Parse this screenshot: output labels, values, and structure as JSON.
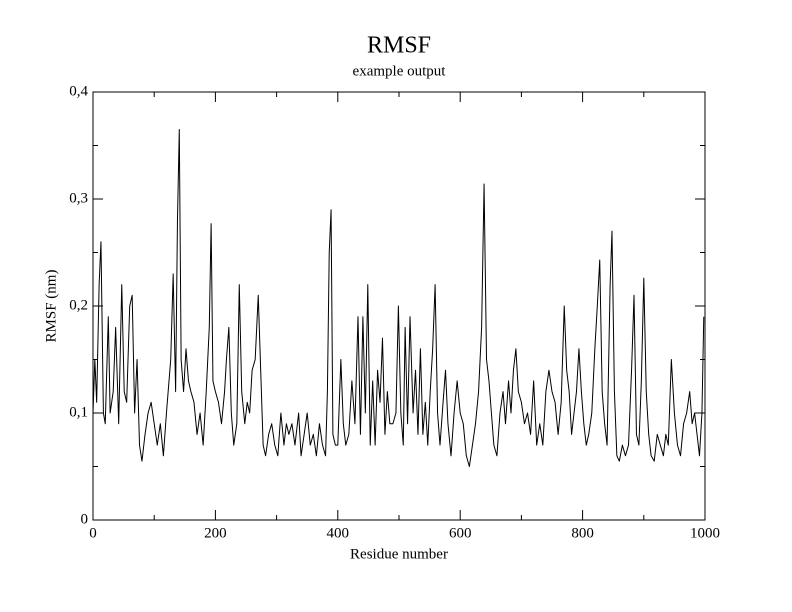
{
  "chart_data": {
    "type": "line",
    "title": "RMSF",
    "subtitle": "example output",
    "x_label": "Residue number",
    "y_label": "RMSF (nm)",
    "xlim": [
      0,
      1000
    ],
    "xticks": [
      0,
      200,
      400,
      600,
      800,
      1000
    ],
    "ylim": [
      0,
      0.4
    ],
    "yticks": [
      0,
      {
        "value": 0.1,
        "label": "0,1"
      },
      {
        "value": 0.2,
        "label": "0,2"
      },
      {
        "value": 0.3,
        "label": "0,3"
      },
      {
        "value": 0.4,
        "label": "0,4"
      }
    ],
    "color": "#000000",
    "x": [
      0,
      3,
      6,
      10,
      13,
      17,
      20,
      25,
      28,
      33,
      37,
      42,
      47,
      51,
      55,
      60,
      64,
      68,
      72,
      76,
      80,
      85,
      90,
      95,
      100,
      105,
      110,
      115,
      120,
      127,
      131,
      135,
      138,
      141,
      144,
      148,
      152,
      156,
      160,
      165,
      170,
      175,
      180,
      185,
      190,
      193,
      196,
      200,
      205,
      210,
      215,
      218,
      222,
      226,
      230,
      235,
      239,
      243,
      248,
      252,
      256,
      260,
      265,
      270,
      274,
      278,
      282,
      287,
      292,
      297,
      302,
      307,
      312,
      316,
      320,
      325,
      330,
      336,
      340,
      345,
      350,
      355,
      360,
      365,
      370,
      375,
      380,
      383,
      386,
      389,
      392,
      396,
      400,
      405,
      409,
      413,
      418,
      423,
      428,
      433,
      437,
      441,
      445,
      449,
      453,
      457,
      461,
      465,
      469,
      473,
      477,
      481,
      485,
      490,
      495,
      499,
      503,
      507,
      510,
      514,
      518,
      523,
      527,
      531,
      535,
      539,
      543,
      547,
      551,
      555,
      559,
      563,
      567,
      572,
      576,
      580,
      585,
      590,
      595,
      600,
      605,
      610,
      615,
      620,
      625,
      630,
      635,
      639,
      643,
      647,
      651,
      655,
      660,
      665,
      670,
      674,
      679,
      683,
      687,
      691,
      695,
      700,
      705,
      710,
      715,
      720,
      725,
      730,
      735,
      740,
      745,
      750,
      755,
      760,
      765,
      770,
      774,
      778,
      782,
      786,
      790,
      794,
      798,
      802,
      806,
      810,
      815,
      820,
      824,
      828,
      832,
      836,
      840,
      845,
      848,
      852,
      856,
      860,
      865,
      870,
      875,
      880,
      884,
      888,
      892,
      896,
      900,
      904,
      908,
      912,
      917,
      922,
      927,
      932,
      936,
      940,
      945,
      950,
      955,
      960,
      965,
      970,
      975,
      979,
      983,
      987,
      991,
      995,
      998
    ],
    "values": [
      0.1,
      0.15,
      0.11,
      0.22,
      0.26,
      0.1,
      0.09,
      0.19,
      0.1,
      0.12,
      0.18,
      0.09,
      0.22,
      0.12,
      0.11,
      0.2,
      0.21,
      0.1,
      0.15,
      0.07,
      0.055,
      0.08,
      0.1,
      0.11,
      0.09,
      0.07,
      0.09,
      0.06,
      0.1,
      0.15,
      0.23,
      0.12,
      0.28,
      0.365,
      0.15,
      0.12,
      0.16,
      0.13,
      0.12,
      0.11,
      0.08,
      0.1,
      0.07,
      0.12,
      0.18,
      0.277,
      0.13,
      0.12,
      0.11,
      0.09,
      0.12,
      0.15,
      0.18,
      0.1,
      0.07,
      0.09,
      0.22,
      0.12,
      0.09,
      0.11,
      0.1,
      0.14,
      0.15,
      0.21,
      0.14,
      0.07,
      0.06,
      0.08,
      0.09,
      0.07,
      0.06,
      0.1,
      0.07,
      0.09,
      0.08,
      0.09,
      0.07,
      0.1,
      0.06,
      0.08,
      0.1,
      0.07,
      0.08,
      0.06,
      0.09,
      0.07,
      0.06,
      0.12,
      0.25,
      0.29,
      0.08,
      0.07,
      0.07,
      0.15,
      0.09,
      0.07,
      0.08,
      0.13,
      0.09,
      0.19,
      0.08,
      0.19,
      0.1,
      0.22,
      0.07,
      0.13,
      0.07,
      0.14,
      0.11,
      0.17,
      0.08,
      0.12,
      0.09,
      0.09,
      0.1,
      0.2,
      0.1,
      0.07,
      0.18,
      0.09,
      0.19,
      0.1,
      0.14,
      0.08,
      0.16,
      0.08,
      0.11,
      0.07,
      0.12,
      0.16,
      0.22,
      0.1,
      0.07,
      0.11,
      0.14,
      0.09,
      0.06,
      0.1,
      0.13,
      0.1,
      0.09,
      0.06,
      0.05,
      0.07,
      0.09,
      0.12,
      0.18,
      0.314,
      0.15,
      0.13,
      0.1,
      0.07,
      0.06,
      0.1,
      0.12,
      0.09,
      0.13,
      0.1,
      0.14,
      0.16,
      0.12,
      0.11,
      0.09,
      0.1,
      0.08,
      0.13,
      0.07,
      0.09,
      0.07,
      0.12,
      0.14,
      0.12,
      0.11,
      0.08,
      0.11,
      0.2,
      0.14,
      0.12,
      0.08,
      0.1,
      0.12,
      0.16,
      0.12,
      0.09,
      0.07,
      0.08,
      0.1,
      0.16,
      0.2,
      0.243,
      0.12,
      0.09,
      0.07,
      0.22,
      0.27,
      0.12,
      0.06,
      0.055,
      0.07,
      0.06,
      0.07,
      0.14,
      0.21,
      0.08,
      0.07,
      0.13,
      0.226,
      0.12,
      0.08,
      0.06,
      0.055,
      0.08,
      0.07,
      0.06,
      0.08,
      0.07,
      0.15,
      0.1,
      0.07,
      0.06,
      0.09,
      0.1,
      0.12,
      0.09,
      0.1,
      0.08,
      0.06,
      0.1,
      0.19
    ]
  }
}
